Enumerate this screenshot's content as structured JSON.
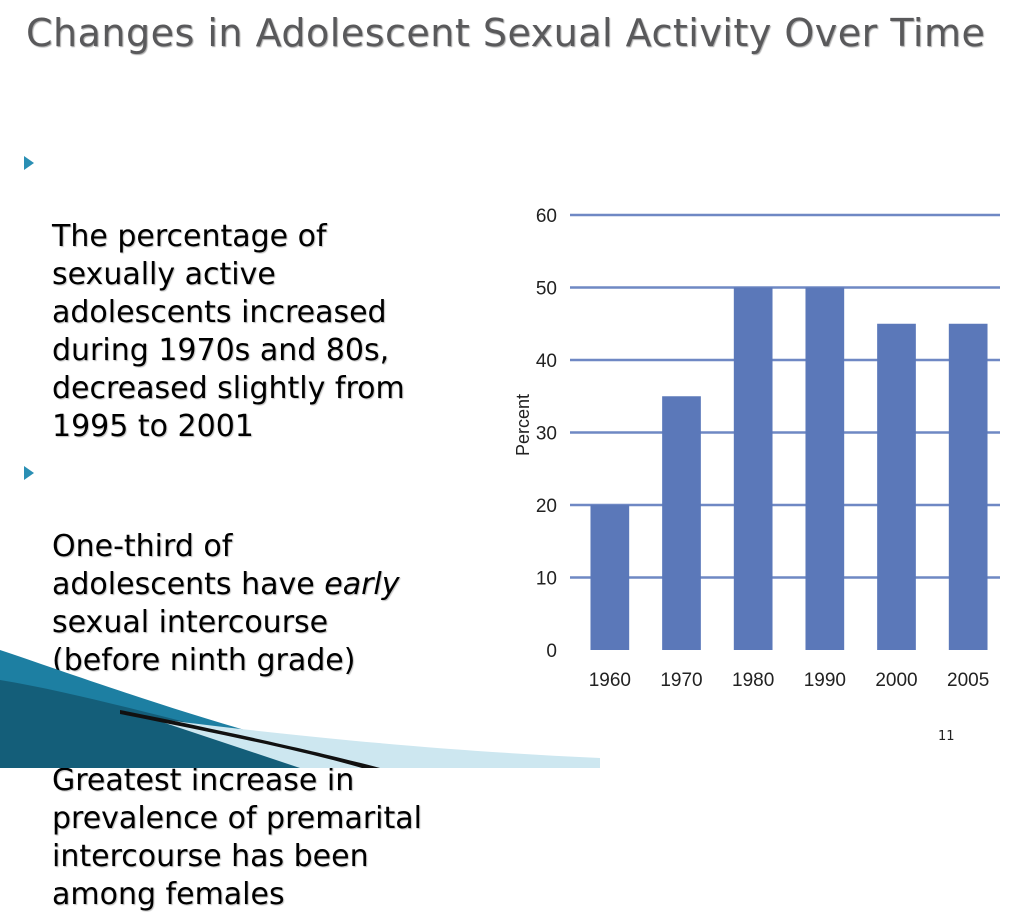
{
  "slide": {
    "title": "Changes in Adolescent Sexual Activity Over Time",
    "page_number": "11"
  },
  "bullets": [
    {
      "text": "The percentage of\nsexually active\nadolescents increased\nduring 1970s and 80s,\ndecreased slightly from\n1995 to 2001"
    },
    {
      "text_before": "One-third of\nadolescents have ",
      "emphasis": "early",
      "text_after": "\nsexual intercourse\n(before ninth grade)"
    },
    {
      "text": "Greatest increase in\nprevalence of premarital\nintercourse has been\namong females"
    }
  ],
  "colors": {
    "bar": "#5b78b9",
    "gridline": "#6f88c4",
    "bullet_arrow": "#2a8fb4",
    "title": "#59595b"
  },
  "chart_data": {
    "type": "bar",
    "categories": [
      "1960",
      "1970",
      "1980",
      "1990",
      "2000",
      "2005"
    ],
    "values": [
      20,
      35,
      50,
      50,
      45,
      45
    ],
    "ylabel": "Percent",
    "xlabel": "",
    "ylim": [
      0,
      60
    ],
    "yticks": [
      0,
      10,
      20,
      30,
      40,
      50,
      60
    ],
    "grid": true,
    "legend": "none"
  }
}
